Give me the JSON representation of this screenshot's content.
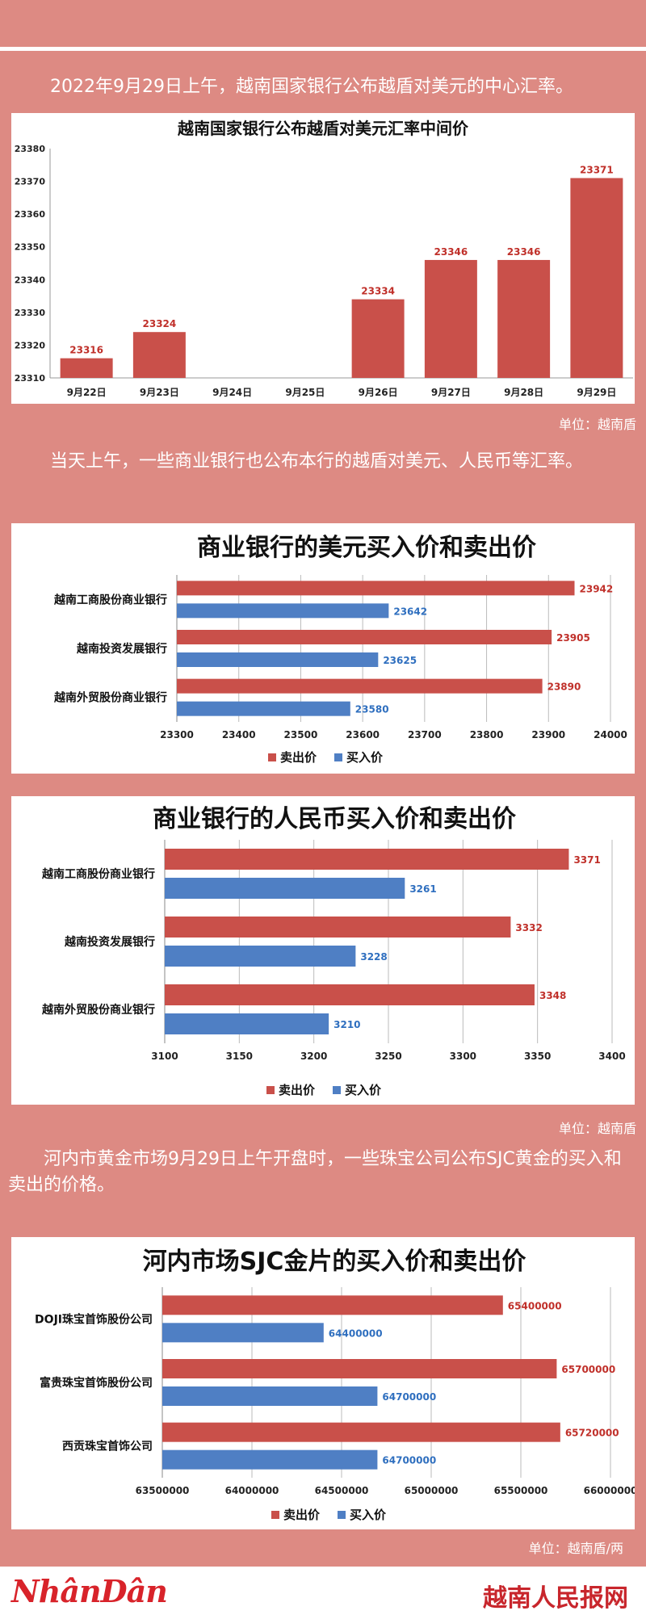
{
  "paragraphs": {
    "p1": "2022年9月29日上午，越南国家银行公布越盾对美元的中心汇率。",
    "p2": "当天上午，一些商业银行也公布本行的越盾对美元、人民币等汇率。",
    "p3": "河内市黄金市场9月29日上午开盘时，一些珠宝公司公布SJC黄金的买入和卖出的价格。"
  },
  "units": {
    "u1": "单位：越南盾",
    "u2": "单位：越南盾",
    "u3": "单位：越南盾/两"
  },
  "footer": {
    "logo": "NhânDân",
    "site": "越南人民报网"
  },
  "colors": {
    "sell": "#c9504a",
    "buy": "#4f7fc4",
    "sell_label": "#c0302a",
    "buy_label": "#2f6fbf",
    "background": "#dd8a83"
  },
  "chart_data": [
    {
      "type": "bar",
      "title": "越南国家银行公布越盾对美元汇率中间价",
      "categories": [
        "9月22日",
        "9月23日",
        "9月24日",
        "9月25日",
        "9月26日",
        "9月27日",
        "9月28日",
        "9月29日"
      ],
      "values": [
        23316,
        23324,
        null,
        null,
        23334,
        23346,
        23346,
        23371
      ],
      "labels": [
        "23316",
        "23324",
        "",
        "",
        "23334",
        "23346",
        "23346",
        "23371"
      ],
      "ylim": [
        23310,
        23380
      ],
      "yticks": [
        23310,
        23320,
        23330,
        23340,
        23350,
        23360,
        23370,
        23380
      ],
      "grid": false
    },
    {
      "type": "bar",
      "orientation": "horizontal",
      "title": "商业银行的美元买入价和卖出价",
      "categories": [
        "越南工商股份商业银行",
        "越南投资发展银行",
        "越南外贸股份商业银行"
      ],
      "series": [
        {
          "name": "卖出价",
          "values": [
            23942,
            23905,
            23890
          ]
        },
        {
          "name": "买入价",
          "values": [
            23642,
            23625,
            23580
          ]
        }
      ],
      "xlim": [
        23300,
        24000
      ],
      "xticks": [
        23300,
        23400,
        23500,
        23600,
        23700,
        23800,
        23900,
        24000
      ],
      "legend": "bottom",
      "grid": true
    },
    {
      "type": "bar",
      "orientation": "horizontal",
      "title": "商业银行的人民币买入价和卖出价",
      "categories": [
        "越南工商股份商业银行",
        "越南投资发展银行",
        "越南外贸股份商业银行"
      ],
      "series": [
        {
          "name": "卖出价",
          "values": [
            3371,
            3332,
            3348
          ]
        },
        {
          "name": "买入价",
          "values": [
            3261,
            3228,
            3210
          ]
        }
      ],
      "xlim": [
        3100,
        3400
      ],
      "xticks": [
        3100,
        3150,
        3200,
        3250,
        3300,
        3350,
        3400
      ],
      "legend": "bottom",
      "grid": true
    },
    {
      "type": "bar",
      "orientation": "horizontal",
      "title": "河内市场SJC金片的买入价和卖出价",
      "categories": [
        "DOJI珠宝首饰股份公司",
        "富贵珠宝首饰股份公司",
        "西贡珠宝首饰公司"
      ],
      "series": [
        {
          "name": "卖出价",
          "values": [
            65400000,
            65700000,
            65720000
          ]
        },
        {
          "name": "买入价",
          "values": [
            64400000,
            64700000,
            64700000
          ]
        }
      ],
      "xlim": [
        63500000,
        66000000
      ],
      "xticks": [
        63500000,
        64000000,
        64500000,
        65000000,
        65500000,
        66000000
      ],
      "legend": "bottom",
      "grid": true
    }
  ]
}
